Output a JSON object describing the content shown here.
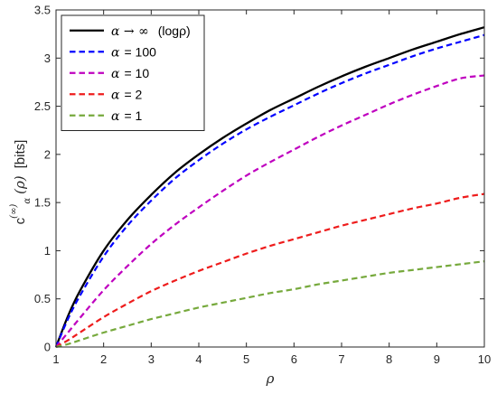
{
  "chart_data": {
    "type": "line",
    "xlabel": "ρ",
    "ylabel": {
      "main": "c",
      "superscript": "(∞)",
      "subscript": "α",
      "arg": "(ρ)",
      "unit": "[bits]"
    },
    "xlim": [
      1,
      10
    ],
    "ylim": [
      0,
      3.5
    ],
    "xticks": [
      "1",
      "2",
      "3",
      "4",
      "5",
      "6",
      "7",
      "8",
      "9",
      "10"
    ],
    "yticks": [
      "0",
      "0.5",
      "1",
      "1.5",
      "2",
      "2.5",
      "3",
      "3.5"
    ],
    "grid": false,
    "legend_position": "top-left",
    "x": [
      1,
      1.25,
      1.5,
      2,
      2.5,
      3,
      3.5,
      4,
      4.5,
      5,
      5.5,
      6,
      6.5,
      7,
      7.5,
      8,
      8.5,
      9,
      9.5,
      10
    ],
    "series": [
      {
        "name_prefix": "α → ∞",
        "name_suffix": "(logρ)",
        "color": "#000000",
        "style": "solid",
        "values": [
          0,
          0.32,
          0.58,
          1.0,
          1.32,
          1.58,
          1.81,
          2.0,
          2.17,
          2.32,
          2.46,
          2.58,
          2.7,
          2.81,
          2.91,
          3.0,
          3.09,
          3.17,
          3.25,
          3.32
        ]
      },
      {
        "name_prefix": "α",
        "name_suffix": "= 100",
        "color": "#0000ff",
        "style": "dashed",
        "values": [
          0,
          0.29,
          0.53,
          0.94,
          1.26,
          1.52,
          1.75,
          1.94,
          2.11,
          2.26,
          2.39,
          2.51,
          2.63,
          2.74,
          2.84,
          2.93,
          3.02,
          3.1,
          3.17,
          3.24
        ]
      },
      {
        "name_prefix": "α",
        "name_suffix": "= 10",
        "color": "#bf00bf",
        "style": "dashed",
        "values": [
          0,
          0.15,
          0.3,
          0.59,
          0.84,
          1.07,
          1.27,
          1.45,
          1.62,
          1.78,
          1.92,
          2.05,
          2.18,
          2.3,
          2.41,
          2.52,
          2.62,
          2.71,
          2.79,
          2.82
        ]
      },
      {
        "name_prefix": "α",
        "name_suffix": "= 2",
        "color": "#ee1c1c",
        "style": "dashed",
        "values": [
          0,
          0.07,
          0.15,
          0.31,
          0.45,
          0.58,
          0.69,
          0.79,
          0.88,
          0.97,
          1.05,
          1.12,
          1.19,
          1.26,
          1.32,
          1.38,
          1.44,
          1.49,
          1.55,
          1.59
        ]
      },
      {
        "name_prefix": "α",
        "name_suffix": "= 1",
        "color": "#76a93c",
        "style": "dashed",
        "values": [
          0,
          0.03,
          0.07,
          0.15,
          0.22,
          0.29,
          0.35,
          0.41,
          0.46,
          0.51,
          0.56,
          0.6,
          0.65,
          0.69,
          0.73,
          0.77,
          0.8,
          0.83,
          0.86,
          0.89
        ]
      }
    ]
  }
}
